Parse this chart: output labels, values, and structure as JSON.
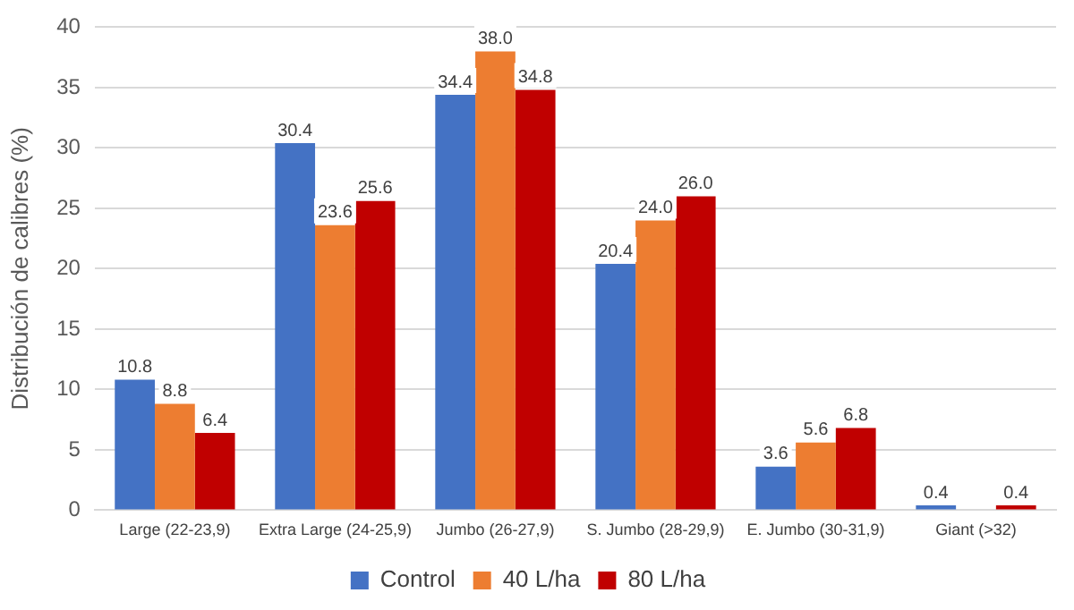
{
  "chart_data": {
    "type": "bar",
    "ylabel": "Distribución de calibres (%)",
    "categories": [
      "Large (22-23,9)",
      "Extra Large (24-25,9)",
      "Jumbo (26-27,9)",
      "S. Jumbo (28-29,9)",
      "E. Jumbo (30-31,9)",
      "Giant (>32)"
    ],
    "series": [
      {
        "name": "Control",
        "color": "#4472c4",
        "values": [
          10.8,
          30.4,
          34.4,
          20.4,
          3.6,
          0.4
        ],
        "value_labels": [
          "10.8",
          "30.4",
          "34.4",
          "20.4",
          "3.6",
          "0.4"
        ]
      },
      {
        "name": "40 L/ha",
        "color": "#ed7d31",
        "values": [
          8.8,
          23.6,
          38.0,
          24.0,
          5.6,
          0
        ],
        "value_labels": [
          "8.8",
          "23.6",
          "38.0",
          "24.0",
          "5.6",
          null
        ]
      },
      {
        "name": "80 L/ha",
        "color": "#c00000",
        "values": [
          6.4,
          25.6,
          34.8,
          26.0,
          6.8,
          0.4
        ],
        "value_labels": [
          "6.4",
          "25.6",
          "34.8",
          "26.0",
          "6.8",
          "0.4"
        ]
      }
    ],
    "ylim": [
      0,
      40
    ],
    "yticks": [
      0,
      5,
      10,
      15,
      20,
      25,
      30,
      35,
      40
    ],
    "grid": "y",
    "legend": "bottom"
  }
}
